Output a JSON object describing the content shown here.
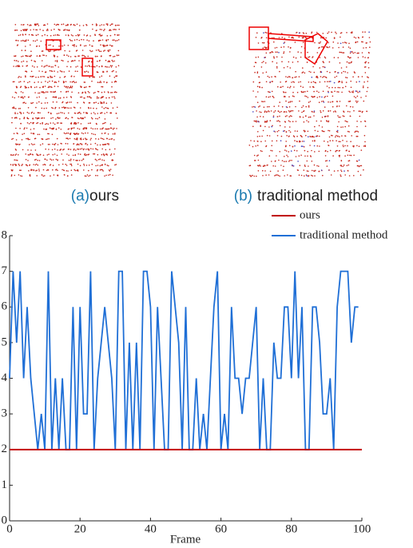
{
  "panels": [
    {
      "label": "(a)",
      "caption": "ours"
    },
    {
      "label": "(b)",
      "caption": "traditional method"
    }
  ],
  "chart_data": {
    "type": "line",
    "xlabel": "Frame",
    "xlim": [
      0,
      100
    ],
    "xticks": [
      0,
      20,
      40,
      60,
      80,
      100
    ],
    "ylim": [
      0,
      8
    ],
    "yticks": [
      0,
      1,
      2,
      3,
      4,
      5,
      6,
      7,
      8
    ],
    "legend": "top-right",
    "series": [
      {
        "name": "ours",
        "color": "#c00000",
        "x": [
          0,
          100
        ],
        "values": [
          2,
          2
        ]
      },
      {
        "name": "traditional method",
        "color": "#1f6fd6",
        "x": [
          0,
          1,
          2,
          3,
          4,
          5,
          6,
          7,
          8,
          9,
          10,
          11,
          12,
          13,
          14,
          15,
          16,
          17,
          18,
          19,
          20,
          21,
          22,
          23,
          24,
          25,
          26,
          27,
          28,
          29,
          30,
          31,
          32,
          33,
          34,
          35,
          36,
          37,
          38,
          39,
          40,
          41,
          42,
          43,
          44,
          45,
          46,
          47,
          48,
          49,
          50,
          51,
          52,
          53,
          54,
          55,
          56,
          57,
          58,
          59,
          60,
          61,
          62,
          63,
          64,
          65,
          66,
          67,
          68,
          69,
          70,
          71,
          72,
          73,
          74,
          75,
          76,
          77,
          78,
          79,
          80,
          81,
          82,
          83,
          84,
          85,
          86,
          87,
          88,
          89,
          90,
          91,
          92,
          93,
          94,
          95,
          96,
          97,
          98,
          99
        ],
        "values": [
          4,
          7,
          5,
          7,
          4,
          6,
          4,
          3,
          2,
          3,
          2,
          7,
          2,
          4,
          2,
          4,
          2,
          2,
          6,
          2,
          6,
          3,
          3,
          7,
          2,
          4,
          5,
          6,
          5,
          4,
          2,
          7,
          7,
          2,
          5,
          2,
          5,
          2,
          7,
          7,
          6,
          2,
          6,
          4,
          2,
          2,
          7,
          6,
          5,
          2,
          6,
          2,
          2,
          4,
          2,
          3,
          2,
          4,
          6,
          7,
          2,
          3,
          2,
          6,
          4,
          4,
          3,
          4,
          4,
          5,
          6,
          2,
          4,
          2,
          2,
          5,
          4,
          4,
          6,
          6,
          4,
          7,
          4,
          6,
          2,
          2,
          6,
          6,
          5,
          3,
          3,
          4,
          2,
          6,
          7,
          7,
          7,
          5,
          6,
          6
        ]
      }
    ]
  }
}
